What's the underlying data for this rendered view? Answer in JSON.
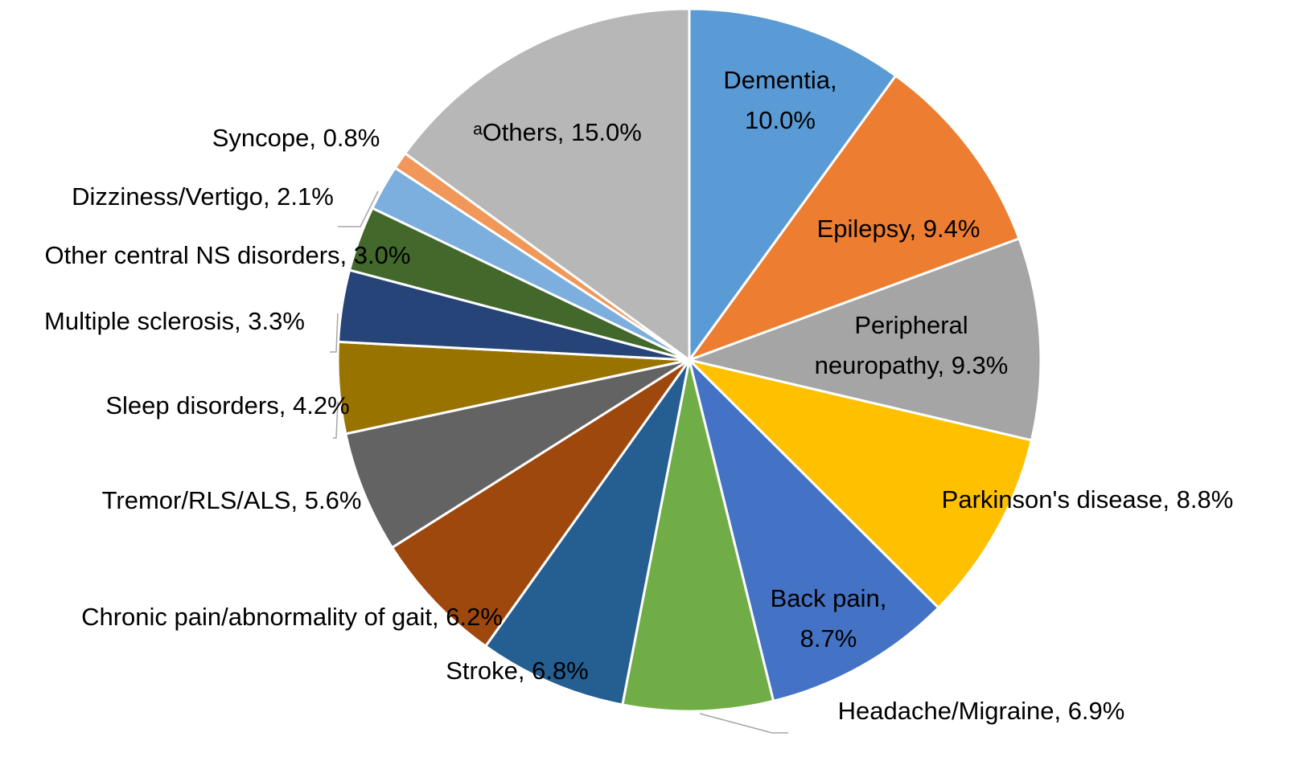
{
  "chart_data": {
    "type": "pie",
    "categories": [
      "Dementia",
      "Epilepsy",
      "Peripheral neuropathy",
      "Parkinson's disease",
      "Back pain",
      "Headache/Migraine",
      "Stroke",
      "Chronic pain/abnormality of gait",
      "Tremor/RLS/ALS",
      "Sleep disorders",
      "Multiple sclerosis",
      "Other central NS disorders",
      "Dizziness/Vertigo",
      "Syncope",
      "ᵃOthers"
    ],
    "values": [
      10.0,
      9.4,
      9.3,
      8.8,
      8.7,
      6.9,
      6.8,
      6.2,
      5.6,
      4.2,
      3.3,
      3.0,
      2.1,
      0.8,
      15.0
    ],
    "value_labels": [
      "10.0%",
      "9.4%",
      "9.3%",
      "8.8%",
      "8.7%",
      "6.9%",
      "6.8%",
      "6.2%",
      "5.6%",
      "4.2%",
      "3.3%",
      "3.0%",
      "2.1%",
      "0.8%",
      "15.0%"
    ],
    "label_separator": ", ",
    "colors": [
      "#5b9bd5",
      "#ed7d31",
      "#a5a5a5",
      "#ffc000",
      "#4472c4",
      "#70ad47",
      "#255e91",
      "#9e480e",
      "#636363",
      "#997300",
      "#264478",
      "#43682b",
      "#7cafdd",
      "#f1975a",
      "#b7b7b7"
    ]
  }
}
